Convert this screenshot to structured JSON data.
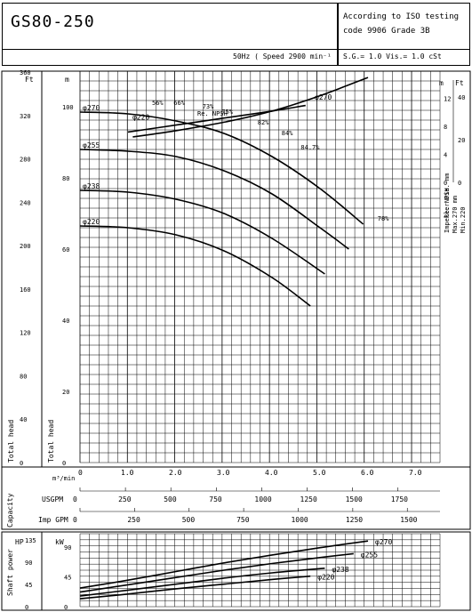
{
  "header": {
    "model": "GS80-250",
    "standard_line1": "According to ISO testing",
    "standard_line2": "code 9906 Grade 3B",
    "speed_line": "50Hz  ( Speed 2900 min⁻¹ )",
    "sg_line": "S.G.= 1.0   Vis.= 1.0 cSt"
  },
  "chart_data": [
    {
      "type": "line",
      "title": "",
      "xlabel": "m³/min",
      "ylabel": "Total head",
      "x_ticks": [
        "0",
        "1.0",
        "2.0",
        "3.0",
        "4.0",
        "5.0",
        "6.0",
        "7.0"
      ],
      "xlim": [
        0,
        7.5
      ],
      "ylim_m": [
        0,
        110
      ],
      "left_ft_ticks": [
        "0",
        "40",
        "80",
        "120",
        "160",
        "200",
        "240",
        "280",
        "320",
        "360"
      ],
      "left_ft_label": "Ft",
      "left_m_ticks": [
        "0",
        "20",
        "40",
        "60",
        "80",
        "100"
      ],
      "left_m_label": "m",
      "head_label_ft": "Total head",
      "head_label_m": "Total head",
      "series": [
        {
          "name": "φ270",
          "x": [
            0,
            1,
            2,
            3,
            4,
            5,
            5.9
          ],
          "y": [
            98.5,
            98,
            96,
            92.5,
            86,
            77,
            67
          ]
        },
        {
          "name": "φ255",
          "x": [
            0,
            1,
            2,
            3,
            4,
            5,
            5.6
          ],
          "y": [
            88,
            87.5,
            86,
            82,
            75.5,
            66,
            60
          ]
        },
        {
          "name": "φ238",
          "x": [
            0,
            1,
            2,
            3,
            4,
            5.1
          ],
          "y": [
            76.5,
            76,
            74,
            70,
            63,
            53
          ]
        },
        {
          "name": "φ220",
          "x": [
            0,
            1,
            2,
            3,
            4,
            4.8
          ],
          "y": [
            66.5,
            66,
            64,
            59.5,
            52,
            44
          ]
        }
      ],
      "efficiency_labels": [
        "56%",
        "66%",
        "73%",
        "75%",
        "82%",
        "84%",
        "84.7%",
        "78%"
      ],
      "efficiency_label_x": [
        1.5,
        1.95,
        2.55,
        2.95,
        3.7,
        4.2,
        4.6,
        6.2
      ],
      "efficiency_label_y": [
        100.5,
        100.5,
        99.5,
        98,
        95,
        92,
        88,
        68
      ],
      "npsh": {
        "label": "Re. NPSH",
        "right_m_label": "m",
        "right_ft_label": "Ft",
        "right_m_ticks": [
          "0",
          "4",
          "8",
          "12"
        ],
        "right_ft_ticks": [
          "0",
          "20",
          "40"
        ],
        "right_m_range": [
          0,
          14
        ],
        "series": [
          {
            "name": "φ270",
            "x": [
              1.1,
              2,
              3,
              4,
              5,
              6
            ],
            "y_m": [
              6.5,
              7.4,
              8.6,
              10.2,
              12.4,
              15
            ]
          },
          {
            "name": "φ220",
            "x": [
              1,
              2,
              3,
              4,
              4.7
            ],
            "y_m": [
              7.2,
              8.2,
              9.2,
              10.2,
              11
            ]
          }
        ]
      },
      "impeller_note": [
        "Impeller Dia.  mm",
        "Max.270  mm",
        "Min.220"
      ],
      "right_axis_label": "Re. NPSH"
    },
    {
      "type": "line",
      "title": "",
      "ylabel": "Shaft power",
      "hp_label": "HP",
      "kw_label": "kW",
      "hp_ticks": [
        "0",
        "45",
        "90",
        "135"
      ],
      "kw_ticks": [
        "0",
        "45",
        "90"
      ],
      "ylim_kw": [
        0,
        110
      ],
      "series": [
        {
          "name": "φ270",
          "x": [
            0,
            1,
            2,
            3,
            4,
            5,
            6
          ],
          "y_kw": [
            28,
            40,
            53,
            66,
            78,
            89,
            99
          ]
        },
        {
          "name": "φ255",
          "x": [
            0,
            1,
            2,
            3,
            4,
            5,
            5.7
          ],
          "y_kw": [
            22,
            33,
            44,
            55,
            65,
            74,
            80
          ]
        },
        {
          "name": "φ238",
          "x": [
            0,
            1,
            2,
            3,
            4,
            5.1
          ],
          "y_kw": [
            16,
            25,
            34,
            43,
            51,
            58
          ]
        },
        {
          "name": "φ220",
          "x": [
            0,
            1,
            2,
            3,
            4,
            4.8
          ],
          "y_kw": [
            12,
            19,
            27,
            34,
            41,
            46
          ]
        }
      ]
    }
  ],
  "capacity": {
    "label": "Capacity",
    "m3_label": "m³/min",
    "usgpm_label": "USGPM",
    "usgpm_ticks": [
      "0",
      "250",
      "500",
      "750",
      "1000",
      "1250",
      "1500",
      "1750"
    ],
    "impgpm_label": "Imp GPM",
    "impgpm_ticks": [
      "0",
      "250",
      "500",
      "750",
      "1000",
      "1250",
      "1500"
    ]
  },
  "colors": {
    "line": "#000000",
    "grid": "#000000",
    "background": "#ffffff"
  }
}
